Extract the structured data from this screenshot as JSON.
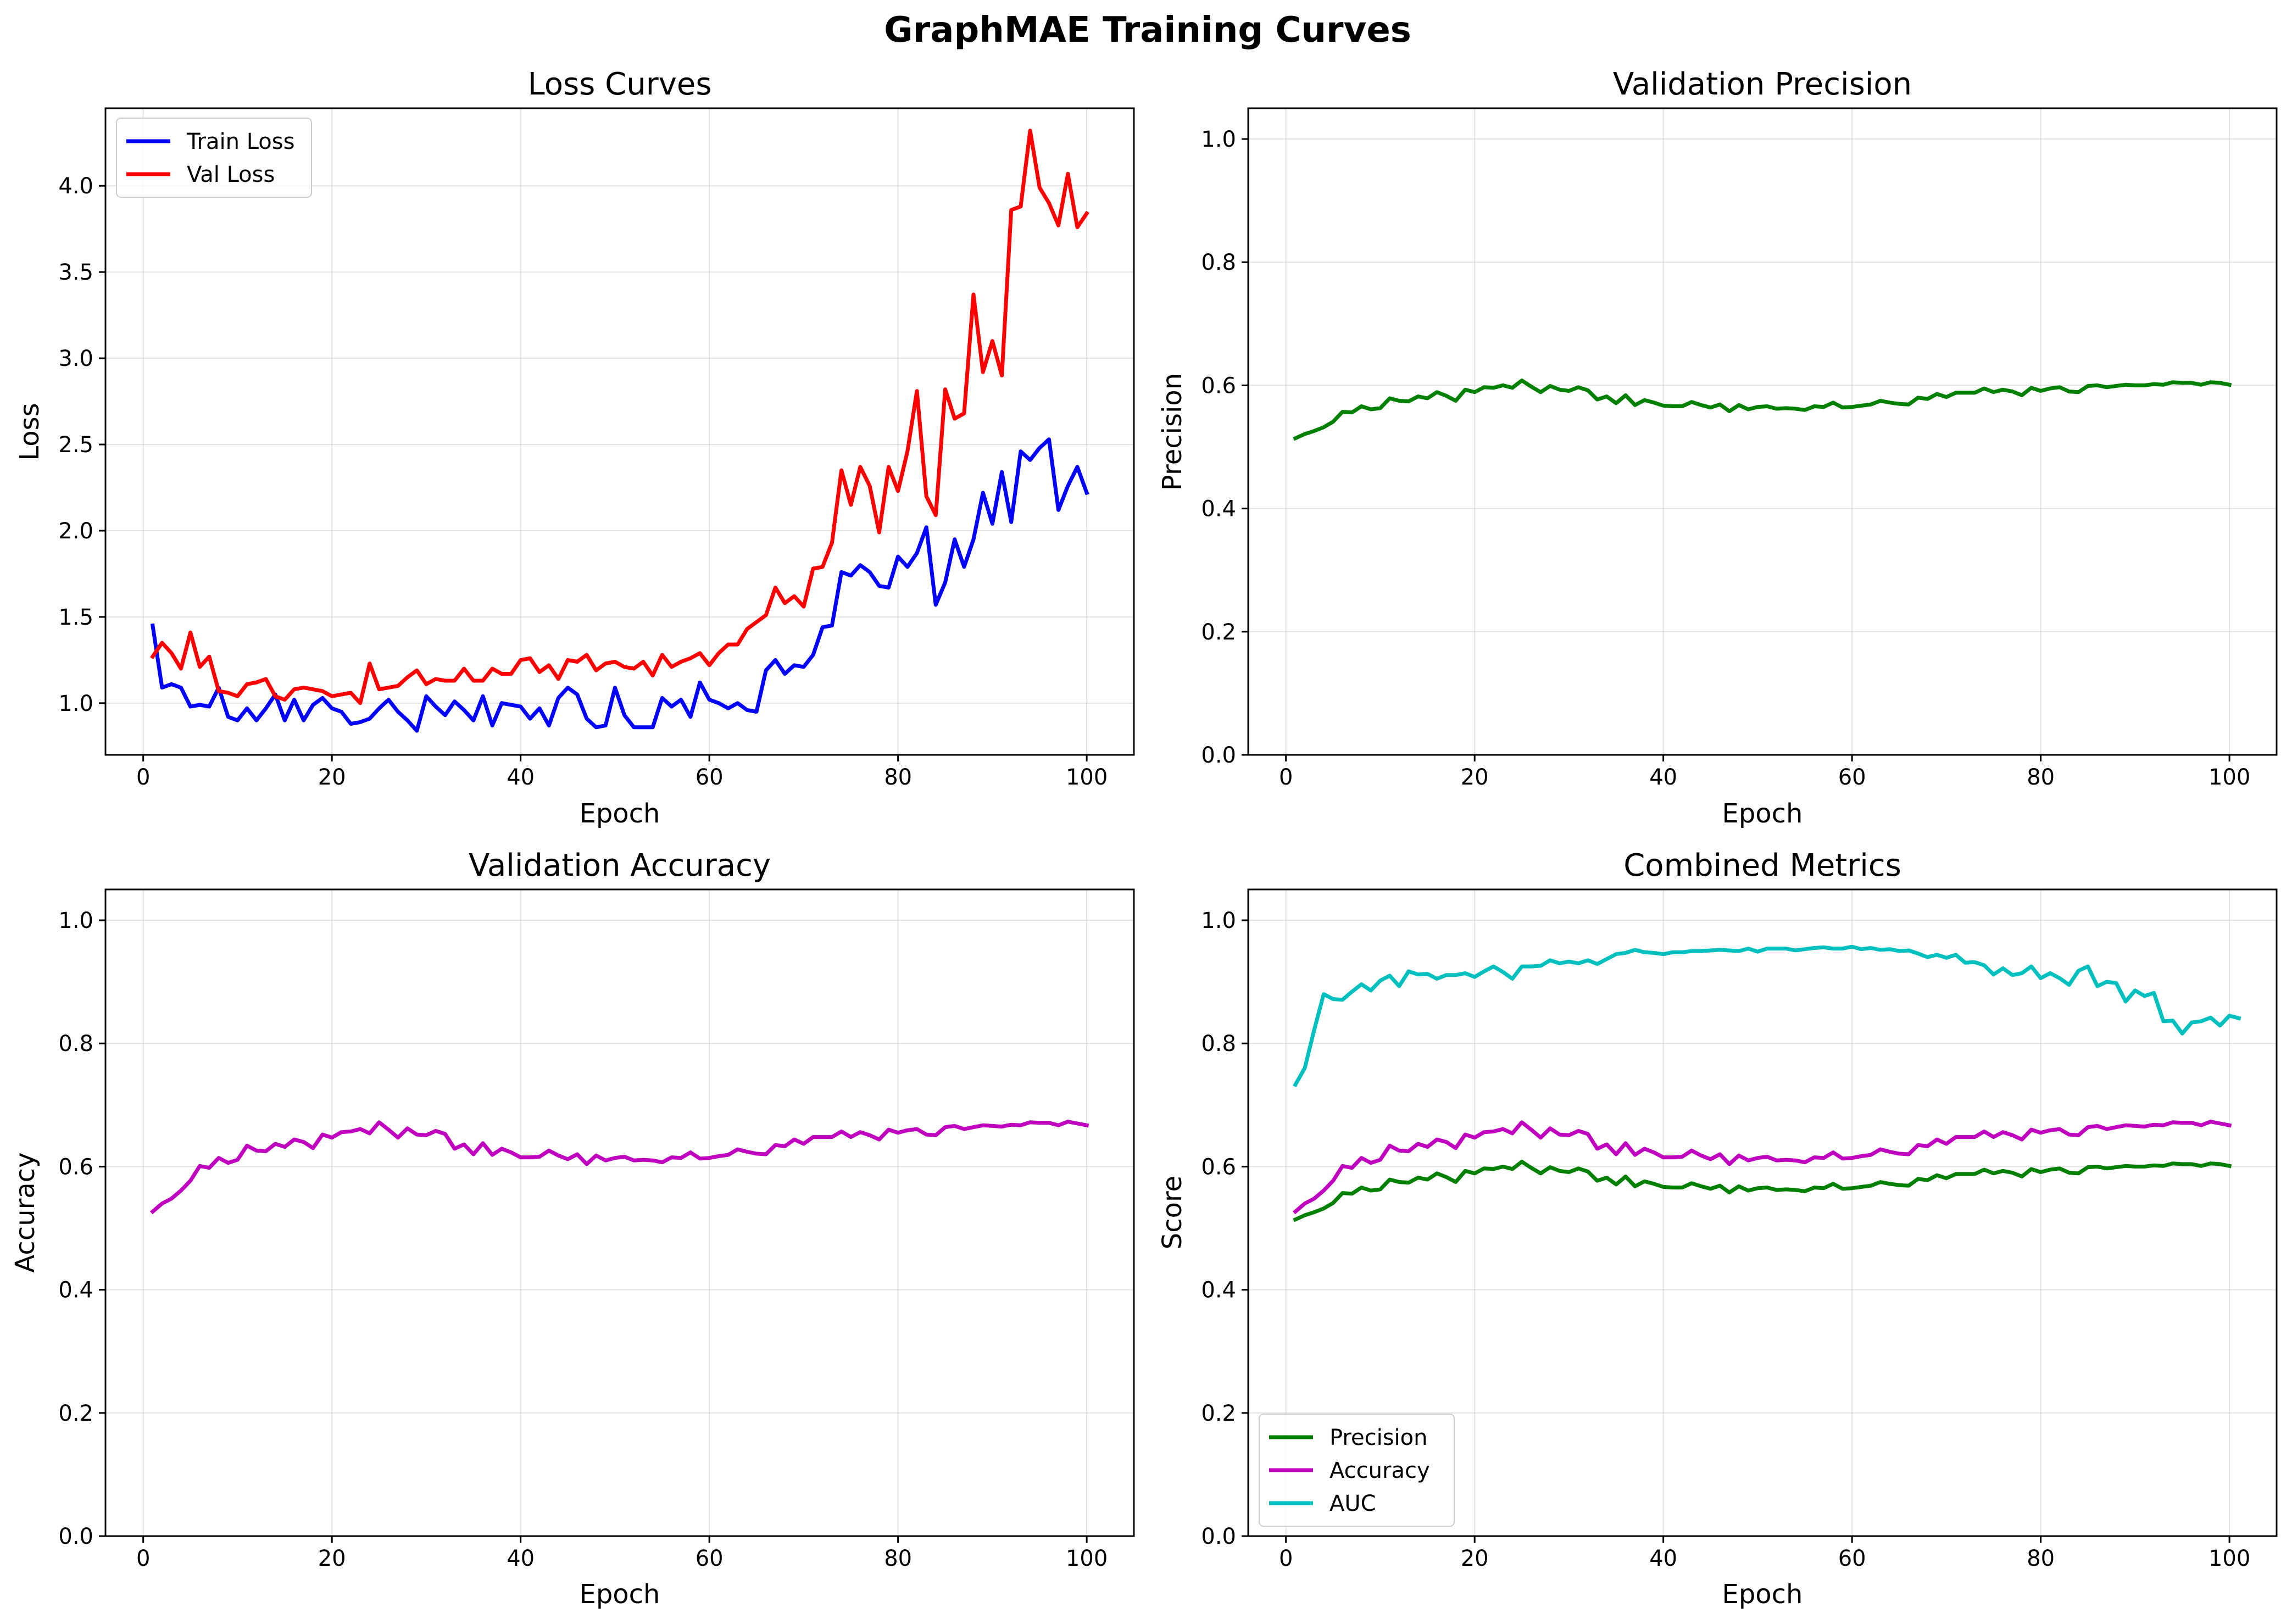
{
  "suptitle": "GraphMAE Training Curves",
  "chart_data": [
    {
      "type": "line",
      "title": "Loss Curves",
      "xlabel": "Epoch",
      "ylabel": "Loss",
      "xlim": [
        -4,
        105
      ],
      "ylim": [
        0.7,
        4.45
      ],
      "xticks": [
        0,
        20,
        40,
        60,
        80,
        100
      ],
      "yticks": [
        1.0,
        1.5,
        2.0,
        2.5,
        3.0,
        3.5,
        4.0
      ],
      "ytick_decimals": 1,
      "grid": true,
      "legend": "upper left",
      "series": [
        {
          "name": "Train Loss",
          "color": "#0000ff",
          "y": [
            1.45,
            1.09,
            1.11,
            1.09,
            0.98,
            0.99,
            0.98,
            1.09,
            0.92,
            0.9,
            0.97,
            0.9,
            0.97,
            1.05,
            0.9,
            1.02,
            0.9,
            0.99,
            1.03,
            0.97,
            0.95,
            0.88,
            0.89,
            0.91,
            0.97,
            1.02,
            0.95,
            0.9,
            0.84,
            1.04,
            0.98,
            0.93,
            1.01,
            0.96,
            0.9,
            1.04,
            0.87,
            1.0,
            0.99,
            0.98,
            0.91,
            0.97,
            0.87,
            1.03,
            1.09,
            1.05,
            0.91,
            0.86,
            0.87,
            1.09,
            0.93,
            0.86,
            0.86,
            0.86,
            1.03,
            0.98,
            1.02,
            0.92,
            1.12,
            1.02,
            1.0,
            0.97,
            1.0,
            0.96,
            0.95,
            1.19,
            1.25,
            1.17,
            1.22,
            1.21,
            1.28,
            1.44,
            1.45,
            1.76,
            1.74,
            1.8,
            1.76,
            1.68,
            1.67,
            1.85,
            1.79,
            1.87,
            2.02,
            1.57,
            1.7,
            1.95,
            1.79,
            1.95,
            2.22,
            2.04,
            2.34,
            2.05,
            2.46,
            2.41,
            2.48,
            2.53,
            2.12,
            2.26,
            2.37,
            2.22
          ]
        },
        {
          "name": "Val Loss",
          "color": "#ff0000",
          "y": [
            1.27,
            1.35,
            1.29,
            1.2,
            1.41,
            1.21,
            1.27,
            1.07,
            1.06,
            1.04,
            1.11,
            1.12,
            1.14,
            1.04,
            1.02,
            1.08,
            1.09,
            1.08,
            1.07,
            1.04,
            1.05,
            1.06,
            1.0,
            1.23,
            1.08,
            1.09,
            1.1,
            1.15,
            1.19,
            1.11,
            1.14,
            1.13,
            1.13,
            1.2,
            1.13,
            1.13,
            1.2,
            1.17,
            1.17,
            1.25,
            1.26,
            1.18,
            1.22,
            1.14,
            1.25,
            1.24,
            1.28,
            1.19,
            1.23,
            1.24,
            1.21,
            1.2,
            1.24,
            1.16,
            1.28,
            1.21,
            1.24,
            1.26,
            1.29,
            1.22,
            1.29,
            1.34,
            1.34,
            1.43,
            1.47,
            1.51,
            1.67,
            1.58,
            1.62,
            1.56,
            1.78,
            1.79,
            1.93,
            2.35,
            2.15,
            2.37,
            2.26,
            1.99,
            2.37,
            2.23,
            2.46,
            2.81,
            2.2,
            2.09,
            2.82,
            2.65,
            2.68,
            3.37,
            2.92,
            3.1,
            2.9,
            3.86,
            3.88,
            4.32,
            3.99,
            3.9,
            3.77,
            4.07,
            3.76,
            3.84
          ]
        }
      ]
    },
    {
      "type": "line",
      "title": "Validation Precision",
      "xlabel": "Epoch",
      "ylabel": "Precision",
      "xlim": [
        -4,
        105
      ],
      "ylim": [
        0.0,
        1.05
      ],
      "xticks": [
        0,
        20,
        40,
        60,
        80,
        100
      ],
      "yticks": [
        0.0,
        0.2,
        0.4,
        0.6,
        0.8,
        1.0
      ],
      "ytick_decimals": 1,
      "grid": true,
      "series": [
        {
          "color": "#008000",
          "y": [
            0.514,
            0.521,
            0.526,
            0.532,
            0.541,
            0.557,
            0.556,
            0.566,
            0.561,
            0.563,
            0.579,
            0.575,
            0.574,
            0.582,
            0.579,
            0.589,
            0.583,
            0.575,
            0.593,
            0.589,
            0.597,
            0.596,
            0.6,
            0.596,
            0.608,
            0.598,
            0.589,
            0.599,
            0.593,
            0.591,
            0.597,
            0.592,
            0.577,
            0.582,
            0.571,
            0.584,
            0.568,
            0.576,
            0.572,
            0.567,
            0.566,
            0.566,
            0.573,
            0.568,
            0.564,
            0.569,
            0.558,
            0.568,
            0.561,
            0.565,
            0.566,
            0.562,
            0.563,
            0.562,
            0.56,
            0.566,
            0.565,
            0.572,
            0.564,
            0.565,
            0.567,
            0.569,
            0.575,
            0.572,
            0.57,
            0.569,
            0.58,
            0.578,
            0.586,
            0.581,
            0.588,
            0.588,
            0.588,
            0.595,
            0.589,
            0.593,
            0.59,
            0.584,
            0.596,
            0.591,
            0.595,
            0.597,
            0.59,
            0.589,
            0.599,
            0.6,
            0.597,
            0.599,
            0.601,
            0.6,
            0.6,
            0.602,
            0.601,
            0.605,
            0.604,
            0.604,
            0.601,
            0.605,
            0.604,
            0.601
          ]
        }
      ]
    },
    {
      "type": "line",
      "title": "Validation Accuracy",
      "xlabel": "Epoch",
      "ylabel": "Accuracy",
      "xlim": [
        -4,
        105
      ],
      "ylim": [
        0.0,
        1.05
      ],
      "xticks": [
        0,
        20,
        40,
        60,
        80,
        100
      ],
      "yticks": [
        0.0,
        0.2,
        0.4,
        0.6,
        0.8,
        1.0
      ],
      "ytick_decimals": 1,
      "grid": true,
      "series": [
        {
          "color": "#bf00bf",
          "y": [
            0.527,
            0.54,
            0.548,
            0.561,
            0.577,
            0.601,
            0.598,
            0.614,
            0.606,
            0.611,
            0.634,
            0.626,
            0.625,
            0.637,
            0.632,
            0.644,
            0.64,
            0.63,
            0.652,
            0.647,
            0.656,
            0.657,
            0.661,
            0.654,
            0.672,
            0.66,
            0.647,
            0.662,
            0.652,
            0.651,
            0.658,
            0.653,
            0.629,
            0.636,
            0.62,
            0.638,
            0.619,
            0.629,
            0.623,
            0.615,
            0.615,
            0.616,
            0.626,
            0.618,
            0.612,
            0.62,
            0.604,
            0.618,
            0.61,
            0.614,
            0.616,
            0.61,
            0.611,
            0.61,
            0.607,
            0.615,
            0.614,
            0.623,
            0.613,
            0.614,
            0.617,
            0.619,
            0.628,
            0.624,
            0.621,
            0.62,
            0.635,
            0.633,
            0.644,
            0.637,
            0.648,
            0.648,
            0.648,
            0.657,
            0.648,
            0.656,
            0.651,
            0.644,
            0.66,
            0.655,
            0.659,
            0.661,
            0.652,
            0.651,
            0.664,
            0.666,
            0.661,
            0.664,
            0.667,
            0.666,
            0.665,
            0.668,
            0.667,
            0.672,
            0.671,
            0.671,
            0.667,
            0.673,
            0.67,
            0.667
          ]
        }
      ]
    },
    {
      "type": "line",
      "title": "Combined Metrics",
      "xlabel": "Epoch",
      "ylabel": "Score",
      "xlim": [
        -4,
        105
      ],
      "ylim": [
        0.0,
        1.05
      ],
      "xticks": [
        0,
        20,
        40,
        60,
        80,
        100
      ],
      "yticks": [
        0.0,
        0.2,
        0.4,
        0.6,
        0.8,
        1.0
      ],
      "ytick_decimals": 1,
      "grid": true,
      "legend": "lower left",
      "series": [
        {
          "name": "Precision",
          "color": "#008000",
          "y": [
            0.514,
            0.521,
            0.526,
            0.532,
            0.541,
            0.557,
            0.556,
            0.566,
            0.561,
            0.563,
            0.579,
            0.575,
            0.574,
            0.582,
            0.579,
            0.589,
            0.583,
            0.575,
            0.593,
            0.589,
            0.597,
            0.596,
            0.6,
            0.596,
            0.608,
            0.598,
            0.589,
            0.599,
            0.593,
            0.591,
            0.597,
            0.592,
            0.577,
            0.582,
            0.571,
            0.584,
            0.568,
            0.576,
            0.572,
            0.567,
            0.566,
            0.566,
            0.573,
            0.568,
            0.564,
            0.569,
            0.558,
            0.568,
            0.561,
            0.565,
            0.566,
            0.562,
            0.563,
            0.562,
            0.56,
            0.566,
            0.565,
            0.572,
            0.564,
            0.565,
            0.567,
            0.569,
            0.575,
            0.572,
            0.57,
            0.569,
            0.58,
            0.578,
            0.586,
            0.581,
            0.588,
            0.588,
            0.588,
            0.595,
            0.589,
            0.593,
            0.59,
            0.584,
            0.596,
            0.591,
            0.595,
            0.597,
            0.59,
            0.589,
            0.599,
            0.6,
            0.597,
            0.599,
            0.601,
            0.6,
            0.6,
            0.602,
            0.601,
            0.605,
            0.604,
            0.604,
            0.601,
            0.605,
            0.604,
            0.601
          ]
        },
        {
          "name": "Accuracy",
          "color": "#bf00bf",
          "y": [
            0.527,
            0.54,
            0.548,
            0.561,
            0.577,
            0.601,
            0.598,
            0.614,
            0.606,
            0.611,
            0.634,
            0.626,
            0.625,
            0.637,
            0.632,
            0.644,
            0.64,
            0.63,
            0.652,
            0.647,
            0.656,
            0.657,
            0.661,
            0.654,
            0.672,
            0.66,
            0.647,
            0.662,
            0.652,
            0.651,
            0.658,
            0.653,
            0.629,
            0.636,
            0.62,
            0.638,
            0.619,
            0.629,
            0.623,
            0.615,
            0.615,
            0.616,
            0.626,
            0.618,
            0.612,
            0.62,
            0.604,
            0.618,
            0.61,
            0.614,
            0.616,
            0.61,
            0.611,
            0.61,
            0.607,
            0.615,
            0.614,
            0.623,
            0.613,
            0.614,
            0.617,
            0.619,
            0.628,
            0.624,
            0.621,
            0.62,
            0.635,
            0.633,
            0.644,
            0.637,
            0.648,
            0.648,
            0.648,
            0.657,
            0.648,
            0.656,
            0.651,
            0.644,
            0.66,
            0.655,
            0.659,
            0.661,
            0.652,
            0.651,
            0.664,
            0.666,
            0.661,
            0.664,
            0.667,
            0.666,
            0.665,
            0.668,
            0.667,
            0.672,
            0.671,
            0.671,
            0.667,
            0.673,
            0.67,
            0.667
          ]
        },
        {
          "name": "AUC",
          "color": "#00bfbf",
          "y": [
            0.733,
            0.76,
            0.822,
            0.88,
            0.872,
            0.871,
            0.884,
            0.896,
            0.886,
            0.902,
            0.91,
            0.893,
            0.917,
            0.912,
            0.913,
            0.905,
            0.911,
            0.911,
            0.914,
            0.908,
            0.917,
            0.925,
            0.916,
            0.905,
            0.925,
            0.925,
            0.926,
            0.935,
            0.93,
            0.933,
            0.93,
            0.935,
            0.929,
            0.937,
            0.945,
            0.947,
            0.952,
            0.948,
            0.947,
            0.945,
            0.948,
            0.948,
            0.95,
            0.95,
            0.951,
            0.952,
            0.951,
            0.95,
            0.954,
            0.949,
            0.954,
            0.954,
            0.954,
            0.951,
            0.953,
            0.955,
            0.956,
            0.954,
            0.954,
            0.957,
            0.953,
            0.955,
            0.952,
            0.953,
            0.95,
            0.951,
            0.946,
            0.94,
            0.944,
            0.939,
            0.944,
            0.931,
            0.932,
            0.927,
            0.912,
            0.922,
            0.911,
            0.914,
            0.925,
            0.906,
            0.914,
            0.906,
            0.895,
            0.918,
            0.925,
            0.893,
            0.9,
            0.898,
            0.868,
            0.886,
            0.877,
            0.882,
            0.836,
            0.837,
            0.816,
            0.834,
            0.836,
            0.842,
            0.829,
            0.845,
            0.841
          ]
        }
      ]
    }
  ]
}
